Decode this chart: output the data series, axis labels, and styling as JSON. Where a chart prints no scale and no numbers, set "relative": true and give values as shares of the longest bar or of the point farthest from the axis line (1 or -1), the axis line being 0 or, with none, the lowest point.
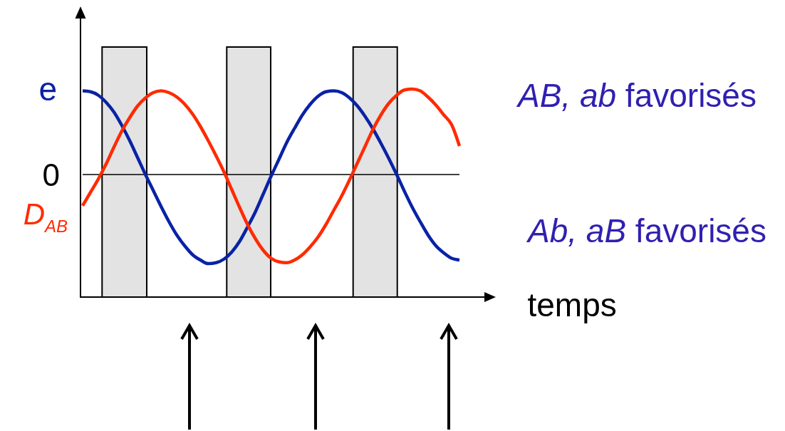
{
  "chart_data": {
    "type": "line",
    "relative": true,
    "xlabel": "temps",
    "categories": [
      null,
      null,
      null,
      null,
      null,
      null,
      null,
      null,
      null,
      null,
      null,
      null,
      null,
      null,
      null,
      null,
      null,
      null,
      null,
      null,
      null,
      null,
      null,
      null,
      null,
      null,
      null,
      null,
      null,
      null,
      null,
      null,
      null,
      null,
      null,
      null,
      null,
      null,
      null,
      null,
      null,
      null,
      null,
      null,
      null,
      null,
      null,
      null,
      null
    ],
    "series": [
      {
        "name": "e",
        "color": "#0a22a5",
        "values": [
          0.94,
          0.93,
          0.89,
          0.81,
          0.7,
          0.55,
          0.38,
          0.19,
          0,
          -0.18,
          -0.36,
          -0.53,
          -0.68,
          -0.8,
          -0.9,
          -0.96,
          -1.0,
          -0.99,
          -0.95,
          -0.87,
          -0.75,
          -0.59,
          -0.42,
          -0.22,
          -0.02,
          0.17,
          0.36,
          0.52,
          0.67,
          0.79,
          0.88,
          0.93,
          0.94,
          0.92,
          0.86,
          0.77,
          0.65,
          0.51,
          0.35,
          0.18,
          0,
          -0.19,
          -0.37,
          -0.53,
          -0.68,
          -0.8,
          -0.88,
          -0.94,
          -0.96
        ]
      },
      {
        "name": "D$_{AB}$",
        "color": "#ff2a00",
        "values": [
          -0.35,
          -0.2,
          -0.05,
          0.12,
          0.31,
          0.49,
          0.64,
          0.77,
          0.86,
          0.92,
          0.94,
          0.92,
          0.87,
          0.79,
          0.68,
          0.54,
          0.38,
          0.21,
          0.03,
          -0.17,
          -0.37,
          -0.56,
          -0.72,
          -0.85,
          -0.94,
          -0.98,
          -0.99,
          -0.96,
          -0.9,
          -0.81,
          -0.7,
          -0.56,
          -0.4,
          -0.24,
          -0.06,
          0.13,
          0.32,
          0.51,
          0.67,
          0.8,
          0.89,
          0.95,
          0.96,
          0.94,
          0.87,
          0.78,
          0.67,
          0.56,
          0.32
        ]
      }
    ],
    "ref_lines": [
      {
        "axis": "y",
        "value": 0,
        "label": "0"
      }
    ],
    "annotations": [
      "AB, ab favorisés",
      "Ab, aB favorisés"
    ]
  }
}
